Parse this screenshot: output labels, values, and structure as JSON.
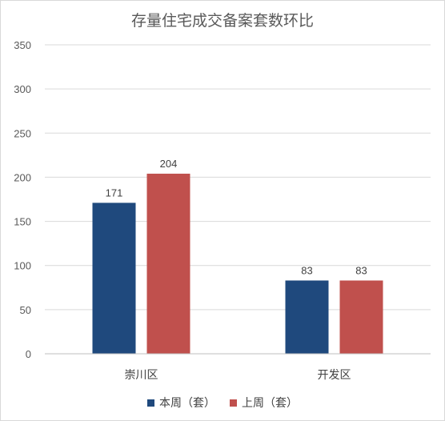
{
  "chart_data": {
    "type": "bar",
    "title": "存量住宅成交备案套数环比",
    "categories": [
      "崇川区",
      "开发区"
    ],
    "series": [
      {
        "name": "本周（套）",
        "values": [
          171,
          83
        ],
        "color": "#1f497d"
      },
      {
        "name": "上周（套）",
        "values": [
          204,
          83
        ],
        "color": "#c0504d"
      }
    ],
    "ylim": [
      0,
      350
    ],
    "yticks": [
      0,
      50,
      100,
      150,
      200,
      250,
      300,
      350
    ],
    "grid": true,
    "legend": "bottom",
    "data_labels": true
  }
}
